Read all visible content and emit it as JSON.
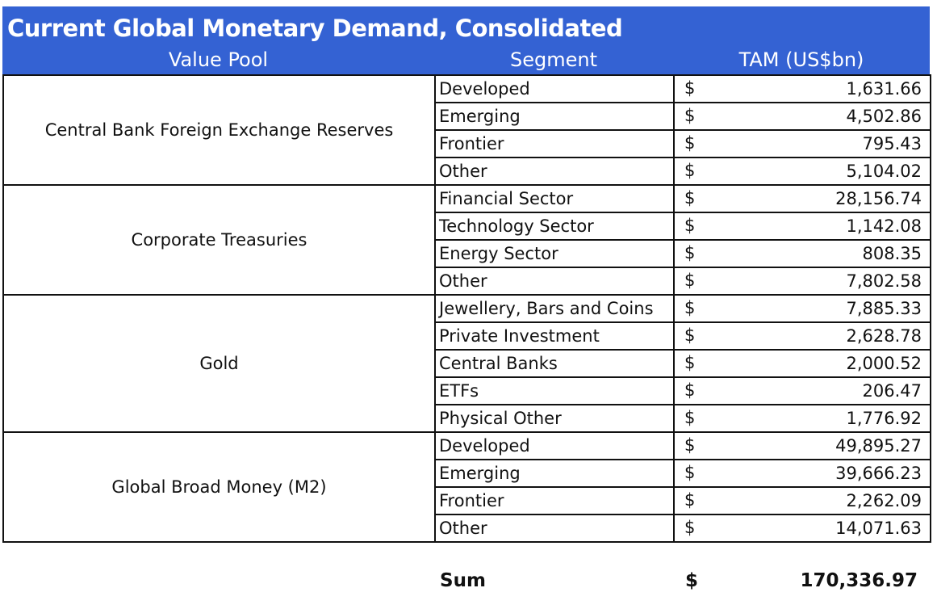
{
  "title": "Current Global Monetary Demand, Consolidated",
  "headers": {
    "value_pool": "Value Pool",
    "segment": "Segment",
    "tam": "TAM (US$bn)"
  },
  "currency_symbol": "$",
  "groups": [
    {
      "pool": "Central Bank Foreign Exchange Reserves",
      "rows": [
        {
          "segment": "Developed",
          "value": "1,631.66"
        },
        {
          "segment": "Emerging",
          "value": "4,502.86"
        },
        {
          "segment": "Frontier",
          "value": "795.43"
        },
        {
          "segment": "Other",
          "value": "5,104.02"
        }
      ]
    },
    {
      "pool": "Corporate Treasuries",
      "rows": [
        {
          "segment": "Financial Sector",
          "value": "28,156.74"
        },
        {
          "segment": "Technology Sector",
          "value": "1,142.08"
        },
        {
          "segment": "Energy Sector",
          "value": "808.35"
        },
        {
          "segment": "Other",
          "value": "7,802.58"
        }
      ]
    },
    {
      "pool": "Gold",
      "rows": [
        {
          "segment": "Jewellery, Bars and Coins",
          "value": "7,885.33"
        },
        {
          "segment": "Private Investment",
          "value": "2,628.78"
        },
        {
          "segment": "Central Banks",
          "value": "2,000.52"
        },
        {
          "segment": "ETFs",
          "value": "206.47"
        },
        {
          "segment": "Physical Other",
          "value": "1,776.92"
        }
      ]
    },
    {
      "pool": "Global Broad Money (M2)",
      "rows": [
        {
          "segment": "Developed",
          "value": "49,895.27"
        },
        {
          "segment": "Emerging",
          "value": "39,666.23"
        },
        {
          "segment": "Frontier",
          "value": "2,262.09"
        },
        {
          "segment": "Other",
          "value": "14,071.63"
        }
      ]
    }
  ],
  "sum": {
    "label": "Sum",
    "currency": "$",
    "value": "170,336.97"
  },
  "colors": {
    "header_bg": "#3462d3"
  }
}
